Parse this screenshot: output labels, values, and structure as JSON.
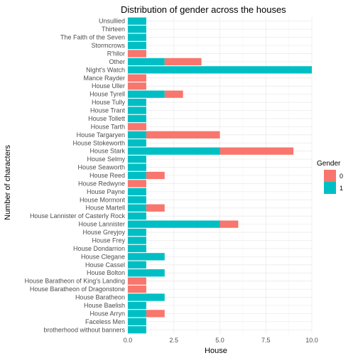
{
  "chart_data": {
    "type": "bar",
    "orientation": "horizontal",
    "stacked": true,
    "title": "Distribution of gender across the houses",
    "xlabel": "House",
    "ylabel": "Number of characters",
    "xlim": [
      0,
      10
    ],
    "x_ticks": [
      "0.0",
      "2.5",
      "5.0",
      "7.5",
      "10.0"
    ],
    "grid": true,
    "legend": {
      "title": "Gender",
      "position": "right"
    },
    "categories": [
      "Unsullied",
      "Thirteen",
      "The Faith of the Seven",
      "Stormcrows",
      "R'hllor",
      "Other",
      "Night's Watch",
      "Mance Rayder",
      "House Uller",
      "House Tyrell",
      "House Tully",
      "House Trant",
      "House Tollett",
      "House Tarth",
      "House Targaryen",
      "House Stokeworth",
      "House Stark",
      "House Selmy",
      "House Seaworth",
      "House Reed",
      "House Redwyne",
      "House Payne",
      "House Mormont",
      "House Martell",
      "House Lannister of Casterly Rock",
      "House Lannister",
      "House Greyjoy",
      "House Frey",
      "House Dondarrion",
      "House Clegane",
      "House Cassel",
      "House Bolton",
      "House Baratheon of King's Landing",
      "House Baratheon of Dragonstone",
      "House Baratheon",
      "House Baelish",
      "House Arryn",
      "Faceless Men",
      "brotherhood without banners"
    ],
    "series": [
      {
        "name": "1",
        "color": "#00BFC4",
        "values": [
          1,
          1,
          1,
          1,
          0,
          2,
          10,
          0,
          0,
          2,
          1,
          1,
          1,
          0,
          1,
          1,
          5,
          1,
          1,
          1,
          0,
          1,
          1,
          1,
          1,
          5,
          1,
          1,
          1,
          2,
          1,
          2,
          0,
          0,
          2,
          1,
          1,
          1,
          1
        ]
      },
      {
        "name": "0",
        "color": "#F8766D",
        "values": [
          0,
          0,
          0,
          0,
          1,
          2,
          0,
          1,
          1,
          1,
          0,
          0,
          0,
          1,
          4,
          0,
          4,
          0,
          0,
          1,
          1,
          0,
          0,
          1,
          0,
          1,
          0,
          0,
          0,
          0,
          0,
          0,
          1,
          1,
          0,
          0,
          1,
          0,
          0
        ]
      }
    ]
  }
}
